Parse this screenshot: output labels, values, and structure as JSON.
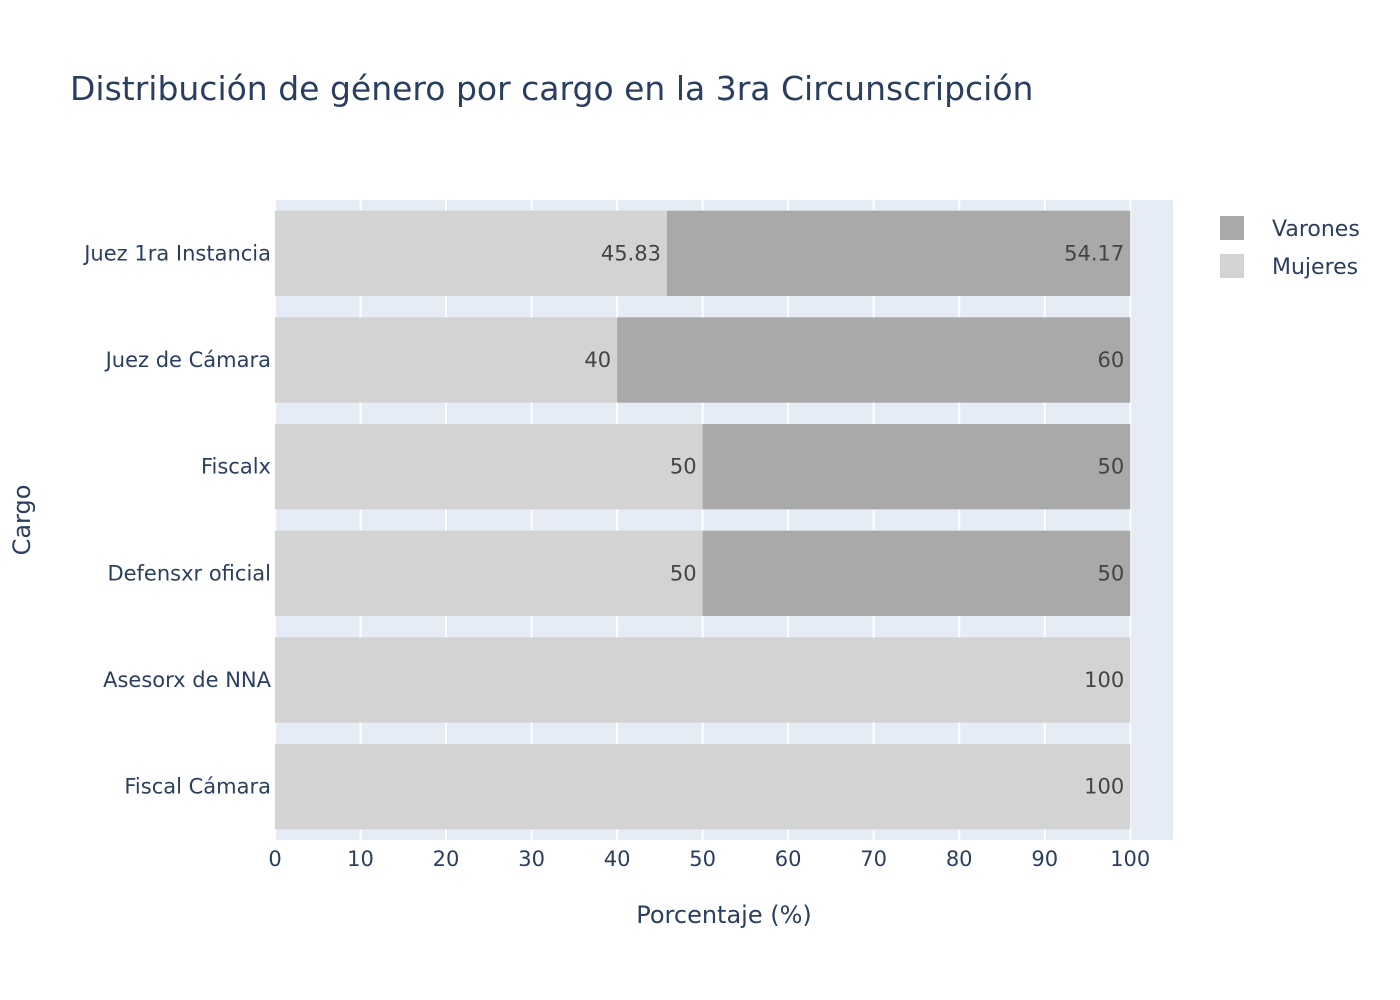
{
  "chart_data": {
    "type": "bar",
    "orientation": "horizontal",
    "barmode": "stack",
    "title": "Distribución de género por cargo en la 3ra Circunscripción",
    "xlabel": "Porcentaje (%)",
    "ylabel": "Cargo",
    "xlim": [
      0,
      105
    ],
    "x_ticks": [
      "0",
      "10",
      "20",
      "30",
      "40",
      "50",
      "60",
      "70",
      "80",
      "90",
      "100"
    ],
    "categories": [
      "Juez 1ra Instancia",
      "Juez de Cámara",
      "Fiscalx",
      "Defensxr oficial",
      "Asesorx de NNA",
      "Fiscal Cámara"
    ],
    "series": [
      {
        "name": "Mujeres",
        "values": [
          45.83,
          40,
          50,
          50,
          100,
          100
        ],
        "labels": [
          "45.83",
          "40",
          "50",
          "50",
          "100",
          "100"
        ],
        "color": "#d3d3d3"
      },
      {
        "name": "Varones",
        "values": [
          54.17,
          60,
          50,
          50,
          0,
          0
        ],
        "labels": [
          "54.17",
          "60",
          "50",
          "50",
          "",
          ""
        ],
        "color": "#a9a9a9"
      }
    ],
    "legend": {
      "placement": "top-right",
      "order": [
        "Varones",
        "Mujeres"
      ]
    },
    "grid": true,
    "colors": {
      "plot_background": "#e5ecf6",
      "gridline": "#ffffff",
      "text": "#2a3f5f"
    }
  }
}
